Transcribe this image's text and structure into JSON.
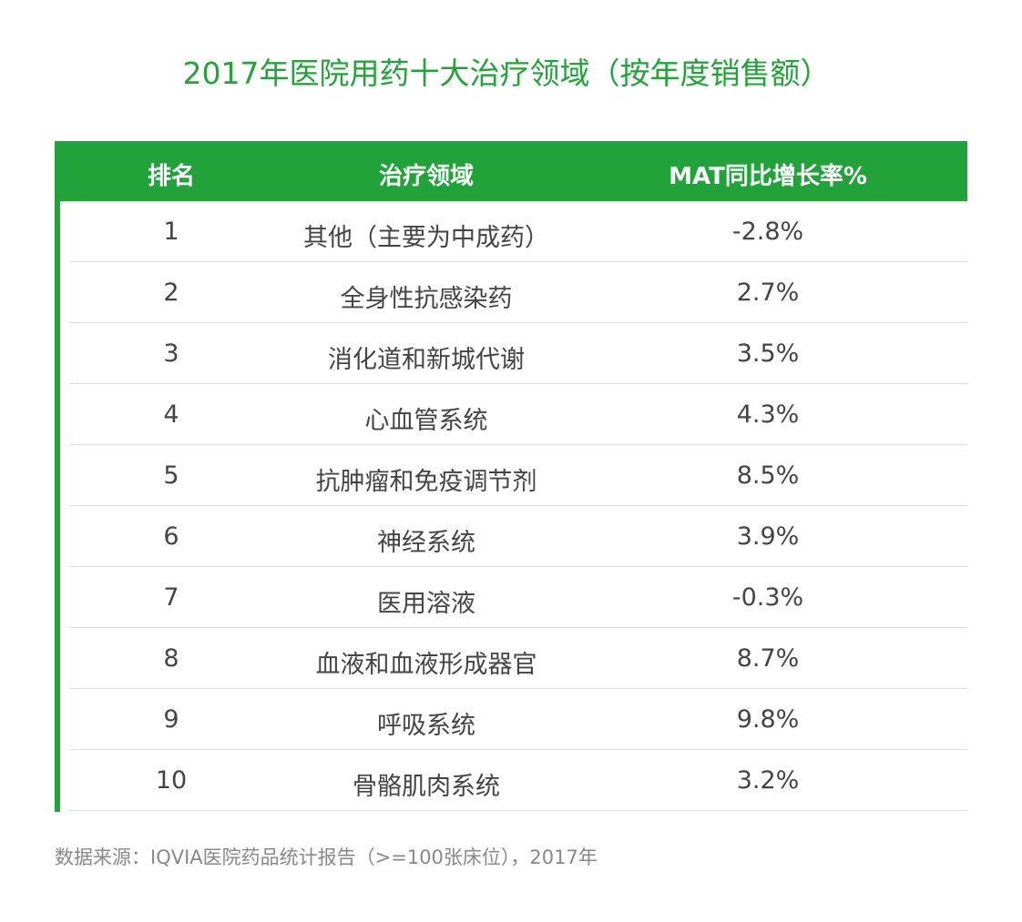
{
  "title": "2017年医院用药十大治疗领域（按年度销售额）",
  "chart_data": {
    "type": "table",
    "title": "2017年医院用药十大治疗领域（按年度销售额）",
    "columns": [
      "排名",
      "治疗领域",
      "MAT同比增长率%"
    ],
    "rows": [
      [
        "1",
        "其他（主要为中成药）",
        "-2.8%"
      ],
      [
        "2",
        "全身性抗感染药",
        "2.7%"
      ],
      [
        "3",
        "消化道和新城代谢",
        "3.5%"
      ],
      [
        "4",
        "心血管系统",
        "4.3%"
      ],
      [
        "5",
        "抗肿瘤和免疫调节剂",
        "8.5%"
      ],
      [
        "6",
        "神经系统",
        "3.9%"
      ],
      [
        "7",
        "医用溶液",
        "-0.3%"
      ],
      [
        "8",
        "血液和血液形成器官",
        "8.7%"
      ],
      [
        "9",
        "呼吸系统",
        "9.8%"
      ],
      [
        "10",
        "骨骼肌肉系统",
        "3.2%"
      ]
    ],
    "header_color": "#22a33a"
  },
  "footer": "数据来源：IQVIA医院药品统计报告（>=100张床位），2017年"
}
